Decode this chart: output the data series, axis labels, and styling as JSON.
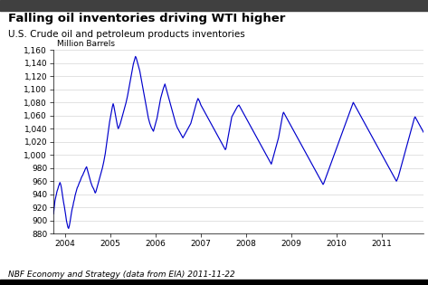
{
  "title": "Falling oil inventories driving WTI higher",
  "subtitle": "U.S. Crude oil and petroleum products inventories",
  "ylabel_annotation": "Million Barrels",
  "footer": "NBF Economy and Strategy (data from EIA) 2011-11-22",
  "ylim": [
    880,
    1160
  ],
  "yticks": [
    880,
    900,
    920,
    940,
    960,
    980,
    1000,
    1020,
    1040,
    1060,
    1080,
    1100,
    1120,
    1140,
    1160
  ],
  "line_color": "#0000CC",
  "title_color": "#000000",
  "subtitle_color": "#000000",
  "footer_color": "#000000",
  "annotation_color": "#000000",
  "top_bar_color": "#404040",
  "bottom_bar_color": "#000000",
  "series": [
    910,
    920,
    930,
    935,
    940,
    945,
    948,
    952,
    955,
    958,
    955,
    950,
    942,
    935,
    928,
    922,
    915,
    908,
    900,
    895,
    890,
    888,
    892,
    898,
    905,
    912,
    918,
    922,
    928,
    932,
    938,
    942,
    946,
    950,
    952,
    955,
    958,
    960,
    963,
    966,
    968,
    970,
    973,
    975,
    978,
    980,
    982,
    978,
    974,
    970,
    966,
    962,
    958,
    955,
    952,
    950,
    948,
    945,
    942,
    944,
    948,
    952,
    956,
    960,
    964,
    968,
    972,
    976,
    980,
    985,
    990,
    996,
    1002,
    1010,
    1018,
    1026,
    1034,
    1042,
    1050,
    1056,
    1062,
    1068,
    1074,
    1078,
    1074,
    1068,
    1062,
    1056,
    1050,
    1044,
    1040,
    1042,
    1045,
    1048,
    1052,
    1056,
    1060,
    1064,
    1068,
    1072,
    1076,
    1080,
    1085,
    1090,
    1096,
    1102,
    1108,
    1114,
    1120,
    1126,
    1132,
    1138,
    1142,
    1146,
    1150,
    1148,
    1144,
    1140,
    1136,
    1132,
    1128,
    1122,
    1116,
    1110,
    1104,
    1098,
    1092,
    1086,
    1080,
    1074,
    1068,
    1062,
    1056,
    1052,
    1048,
    1045,
    1042,
    1040,
    1038,
    1036,
    1040,
    1044,
    1048,
    1052,
    1056,
    1062,
    1068,
    1074,
    1080,
    1086,
    1090,
    1094,
    1098,
    1102,
    1105,
    1108,
    1104,
    1100,
    1096,
    1092,
    1088,
    1084,
    1080,
    1076,
    1072,
    1068,
    1064,
    1060,
    1056,
    1052,
    1048,
    1045,
    1042,
    1040,
    1038,
    1036,
    1034,
    1032,
    1030,
    1028,
    1026,
    1028,
    1030,
    1032,
    1034,
    1036,
    1038,
    1040,
    1042,
    1044,
    1046,
    1048,
    1052,
    1056,
    1060,
    1064,
    1068,
    1072,
    1076,
    1080,
    1083,
    1086,
    1084,
    1082,
    1079,
    1076,
    1074,
    1072,
    1070,
    1068,
    1066,
    1064,
    1062,
    1060,
    1058,
    1056,
    1054,
    1052,
    1050,
    1048,
    1046,
    1044,
    1042,
    1040,
    1038,
    1036,
    1034,
    1032,
    1030,
    1028,
    1026,
    1024,
    1022,
    1020,
    1018,
    1016,
    1014,
    1012,
    1010,
    1008,
    1010,
    1016,
    1022,
    1028,
    1034,
    1040,
    1046,
    1052,
    1058,
    1060,
    1062,
    1064,
    1066,
    1068,
    1070,
    1072,
    1074,
    1075,
    1076,
    1074,
    1072,
    1070,
    1068,
    1066,
    1064,
    1062,
    1060,
    1058,
    1056,
    1054,
    1052,
    1050,
    1048,
    1046,
    1044,
    1042,
    1040,
    1038,
    1036,
    1034,
    1032,
    1030,
    1028,
    1026,
    1024,
    1022,
    1020,
    1018,
    1016,
    1014,
    1012,
    1010,
    1008,
    1006,
    1004,
    1002,
    1000,
    998,
    996,
    994,
    992,
    990,
    988,
    986,
    990,
    994,
    998,
    1002,
    1006,
    1010,
    1014,
    1018,
    1022,
    1026,
    1032,
    1038,
    1044,
    1050,
    1056,
    1062,
    1065,
    1063,
    1061,
    1059,
    1057,
    1055,
    1053,
    1051,
    1049,
    1047,
    1045,
    1043,
    1041,
    1039,
    1037,
    1035,
    1033,
    1031,
    1029,
    1027,
    1025,
    1023,
    1021,
    1019,
    1017,
    1015,
    1013,
    1011,
    1009,
    1007,
    1005,
    1003,
    1001,
    999,
    997,
    995,
    993,
    991,
    989,
    987,
    985,
    983,
    981,
    979,
    977,
    975,
    973,
    971,
    969,
    967,
    965,
    963,
    961,
    959,
    957,
    955,
    957,
    960,
    963,
    966,
    969,
    972,
    975,
    978,
    981,
    984,
    987,
    990,
    993,
    996,
    999,
    1002,
    1005,
    1008,
    1011,
    1014,
    1017,
    1020,
    1023,
    1026,
    1029,
    1032,
    1035,
    1038,
    1041,
    1044,
    1047,
    1050,
    1053,
    1056,
    1059,
    1062,
    1065,
    1068,
    1071,
    1074,
    1077,
    1080,
    1078,
    1076,
    1074,
    1072,
    1070,
    1068,
    1066,
    1064,
    1062,
    1060,
    1058,
    1056,
    1054,
    1052,
    1050,
    1048,
    1046,
    1044,
    1042,
    1040,
    1038,
    1036,
    1034,
    1032,
    1030,
    1028,
    1026,
    1024,
    1022,
    1020,
    1018,
    1016,
    1014,
    1012,
    1010,
    1008,
    1006,
    1004,
    1002,
    1000,
    998,
    996,
    994,
    992,
    990,
    988,
    986,
    984,
    982,
    980,
    978,
    976,
    974,
    972,
    970,
    968,
    966,
    964,
    962,
    960,
    962,
    965,
    968,
    972,
    976,
    980,
    984,
    988,
    992,
    996,
    1000,
    1004,
    1008,
    1012,
    1016,
    1020,
    1024,
    1028,
    1032,
    1036,
    1040,
    1044,
    1048,
    1052,
    1056,
    1058,
    1056,
    1054,
    1052,
    1050,
    1048,
    1046,
    1044,
    1042,
    1040,
    1038,
    1036,
    1034
  ],
  "x_start_year": 2003.75,
  "x_end_year": 2011.92,
  "xtick_years": [
    2004,
    2005,
    2006,
    2007,
    2008,
    2009,
    2010,
    2011
  ]
}
